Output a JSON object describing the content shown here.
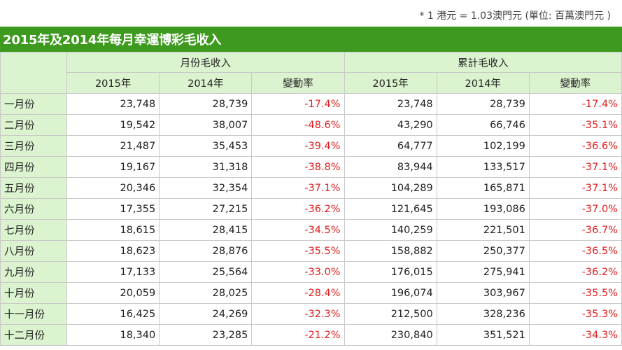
{
  "note": "* 1 港元 = 1.03澳門元 (單位: 百萬澳門元 )",
  "title": "2015年及2014年每月幸運博彩毛收入",
  "headers": {
    "monthly_group": "月份毛收入",
    "cumulative_group": "累計毛收入",
    "monthly_cols": [
      "2015年",
      "2014年",
      "變動率"
    ],
    "cumulative_cols": [
      "2015年",
      "2014年",
      "變動率"
    ]
  },
  "rows": [
    {
      "month": "一月份",
      "m2015": "23,748",
      "m2014": "28,739",
      "mchg": "-17.4%",
      "c2015": "23,748",
      "c2014": "28,739",
      "cchg": "-17.4%"
    },
    {
      "month": "二月份",
      "m2015": "19,542",
      "m2014": "38,007",
      "mchg": "-48.6%",
      "c2015": "43,290",
      "c2014": "66,746",
      "cchg": "-35.1%"
    },
    {
      "month": "三月份",
      "m2015": "21,487",
      "m2014": "35,453",
      "mchg": "-39.4%",
      "c2015": "64,777",
      "c2014": "102,199",
      "cchg": "-36.6%"
    },
    {
      "month": "四月份",
      "m2015": "19,167",
      "m2014": "31,318",
      "mchg": "-38.8%",
      "c2015": "83,944",
      "c2014": "133,517",
      "cchg": "-37.1%"
    },
    {
      "month": "五月份",
      "m2015": "20,346",
      "m2014": "32,354",
      "mchg": "-37.1%",
      "c2015": "104,289",
      "c2014": "165,871",
      "cchg": "-37.1%"
    },
    {
      "month": "六月份",
      "m2015": "17,355",
      "m2014": "27,215",
      "mchg": "-36.2%",
      "c2015": "121,645",
      "c2014": "193,086",
      "cchg": "-37.0%"
    },
    {
      "month": "七月份",
      "m2015": "18,615",
      "m2014": "28,415",
      "mchg": "-34.5%",
      "c2015": "140,259",
      "c2014": "221,501",
      "cchg": "-36.7%"
    },
    {
      "month": "八月份",
      "m2015": "18,623",
      "m2014": "28,876",
      "mchg": "-35.5%",
      "c2015": "158,882",
      "c2014": "250,377",
      "cchg": "-36.5%"
    },
    {
      "month": "九月份",
      "m2015": "17,133",
      "m2014": "25,564",
      "mchg": "-33.0%",
      "c2015": "176,015",
      "c2014": "275,941",
      "cchg": "-36.2%"
    },
    {
      "month": "十月份",
      "m2015": "20,059",
      "m2014": "28,025",
      "mchg": "-28.4%",
      "c2015": "196,074",
      "c2014": "303,967",
      "cchg": "-35.5%"
    },
    {
      "month": "十一月份",
      "m2015": "16,425",
      "m2014": "24,269",
      "mchg": "-32.3%",
      "c2015": "212,500",
      "c2014": "328,236",
      "cchg": "-35.3%"
    },
    {
      "month": "十二月份",
      "m2015": "18,340",
      "m2014": "23,285",
      "mchg": "-21.2%",
      "c2015": "230,840",
      "c2014": "351,521",
      "cchg": "-34.3%"
    }
  ],
  "colors": {
    "title_bg": "#3d9a1e",
    "header_bg": "#dbf3cf",
    "negative": "#e02020",
    "border": "#c9c9c9"
  }
}
